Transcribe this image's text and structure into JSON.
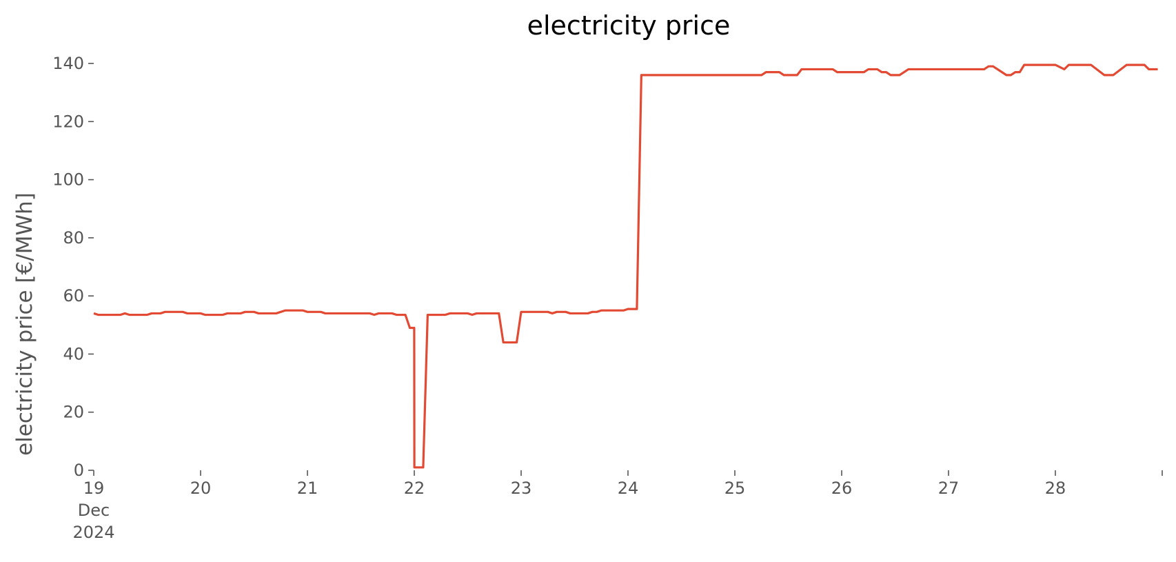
{
  "chart_data": {
    "type": "line",
    "title": "electricity price",
    "xlabel": "",
    "ylabel": "electricity price [€/MWh]",
    "ylim": [
      0,
      140
    ],
    "yticks": [
      0,
      20,
      40,
      60,
      80,
      100,
      120,
      140
    ],
    "xlim": [
      "2024-12-19 00:00",
      "2024-12-29 00:00"
    ],
    "xticks": [
      {
        "date": "2024-12-19",
        "label": "19",
        "sublabels": [
          "Dec",
          "2024"
        ]
      },
      {
        "date": "2024-12-20",
        "label": "20",
        "sublabels": []
      },
      {
        "date": "2024-12-21",
        "label": "21",
        "sublabels": []
      },
      {
        "date": "2024-12-22",
        "label": "22",
        "sublabels": []
      },
      {
        "date": "2024-12-23",
        "label": "23",
        "sublabels": []
      },
      {
        "date": "2024-12-24",
        "label": "24",
        "sublabels": []
      },
      {
        "date": "2024-12-25",
        "label": "25",
        "sublabels": []
      },
      {
        "date": "2024-12-26",
        "label": "26",
        "sublabels": []
      },
      {
        "date": "2024-12-27",
        "label": "27",
        "sublabels": []
      },
      {
        "date": "2024-12-28",
        "label": "28",
        "sublabels": []
      },
      {
        "date": "2024-12-29",
        "label": "",
        "sublabels": []
      }
    ],
    "grid": false,
    "series": [
      {
        "color": "#e24a33",
        "points": [
          [
            "2024-12-19 00:00",
            54
          ],
          [
            "2024-12-19 01:00",
            53.5
          ],
          [
            "2024-12-19 06:00",
            53.5
          ],
          [
            "2024-12-19 07:00",
            54
          ],
          [
            "2024-12-19 08:00",
            53.5
          ],
          [
            "2024-12-19 12:00",
            53.5
          ],
          [
            "2024-12-19 13:00",
            54
          ],
          [
            "2024-12-19 15:00",
            54
          ],
          [
            "2024-12-19 16:00",
            54.5
          ],
          [
            "2024-12-19 20:00",
            54.5
          ],
          [
            "2024-12-19 21:00",
            54
          ],
          [
            "2024-12-20 00:00",
            54
          ],
          [
            "2024-12-20 01:00",
            53.5
          ],
          [
            "2024-12-20 05:00",
            53.5
          ],
          [
            "2024-12-20 06:00",
            54
          ],
          [
            "2024-12-20 09:00",
            54
          ],
          [
            "2024-12-20 10:00",
            54.5
          ],
          [
            "2024-12-20 12:00",
            54.5
          ],
          [
            "2024-12-20 13:00",
            54
          ],
          [
            "2024-12-20 17:00",
            54
          ],
          [
            "2024-12-20 18:00",
            54.5
          ],
          [
            "2024-12-20 19:00",
            55
          ],
          [
            "2024-12-20 23:00",
            55
          ],
          [
            "2024-12-21 00:00",
            54.5
          ],
          [
            "2024-12-21 03:00",
            54.5
          ],
          [
            "2024-12-21 04:00",
            54
          ],
          [
            "2024-12-21 14:00",
            54
          ],
          [
            "2024-12-21 15:00",
            53.5
          ],
          [
            "2024-12-21 16:00",
            54
          ],
          [
            "2024-12-21 19:00",
            54
          ],
          [
            "2024-12-21 20:00",
            53.5
          ],
          [
            "2024-12-21 22:00",
            53.5
          ],
          [
            "2024-12-21 23:00",
            49
          ],
          [
            "2024-12-21 23:59",
            49
          ],
          [
            "2024-12-22 00:01",
            1
          ],
          [
            "2024-12-22 02:00",
            1
          ],
          [
            "2024-12-22 03:00",
            53.5
          ],
          [
            "2024-12-22 07:00",
            53.5
          ],
          [
            "2024-12-22 08:00",
            54
          ],
          [
            "2024-12-22 12:00",
            54
          ],
          [
            "2024-12-22 13:00",
            53.5
          ],
          [
            "2024-12-22 14:00",
            54
          ],
          [
            "2024-12-22 19:00",
            54
          ],
          [
            "2024-12-22 20:00",
            44
          ],
          [
            "2024-12-22 23:00",
            44
          ],
          [
            "2024-12-23 00:00",
            54.5
          ],
          [
            "2024-12-23 06:00",
            54.5
          ],
          [
            "2024-12-23 07:00",
            54
          ],
          [
            "2024-12-23 08:00",
            54.5
          ],
          [
            "2024-12-23 10:00",
            54.5
          ],
          [
            "2024-12-23 11:00",
            54
          ],
          [
            "2024-12-23 15:00",
            54
          ],
          [
            "2024-12-23 16:00",
            54.5
          ],
          [
            "2024-12-23 17:00",
            54.5
          ],
          [
            "2024-12-23 18:00",
            55
          ],
          [
            "2024-12-23 23:00",
            55
          ],
          [
            "2024-12-24 00:00",
            55.5
          ],
          [
            "2024-12-24 02:00",
            55.5
          ],
          [
            "2024-12-24 03:00",
            136
          ],
          [
            "2024-12-25 06:00",
            136
          ],
          [
            "2024-12-25 07:00",
            137
          ],
          [
            "2024-12-25 10:00",
            137
          ],
          [
            "2024-12-25 11:00",
            136
          ],
          [
            "2024-12-25 14:00",
            136
          ],
          [
            "2024-12-25 15:00",
            138
          ],
          [
            "2024-12-25 22:00",
            138
          ],
          [
            "2024-12-25 23:00",
            137
          ],
          [
            "2024-12-26 05:00",
            137
          ],
          [
            "2024-12-26 06:00",
            138
          ],
          [
            "2024-12-26 08:00",
            138
          ],
          [
            "2024-12-26 09:00",
            137
          ],
          [
            "2024-12-26 10:00",
            137
          ],
          [
            "2024-12-26 11:00",
            136
          ],
          [
            "2024-12-26 13:00",
            136
          ],
          [
            "2024-12-26 15:00",
            138
          ],
          [
            "2024-12-27 08:00",
            138
          ],
          [
            "2024-12-27 09:00",
            139
          ],
          [
            "2024-12-27 10:00",
            139
          ],
          [
            "2024-12-27 12:00",
            137
          ],
          [
            "2024-12-27 13:00",
            136
          ],
          [
            "2024-12-27 14:00",
            136
          ],
          [
            "2024-12-27 15:00",
            137
          ],
          [
            "2024-12-27 16:00",
            137
          ],
          [
            "2024-12-27 17:00",
            139.5
          ],
          [
            "2024-12-28 00:00",
            139.5
          ],
          [
            "2024-12-28 02:00",
            138
          ],
          [
            "2024-12-28 03:00",
            139.5
          ],
          [
            "2024-12-28 08:00",
            139.5
          ],
          [
            "2024-12-28 11:00",
            136
          ],
          [
            "2024-12-28 13:00",
            136
          ],
          [
            "2024-12-28 16:00",
            139.5
          ],
          [
            "2024-12-28 20:00",
            139.5
          ],
          [
            "2024-12-28 21:00",
            138
          ],
          [
            "2024-12-28 23:00",
            138
          ]
        ]
      }
    ]
  }
}
